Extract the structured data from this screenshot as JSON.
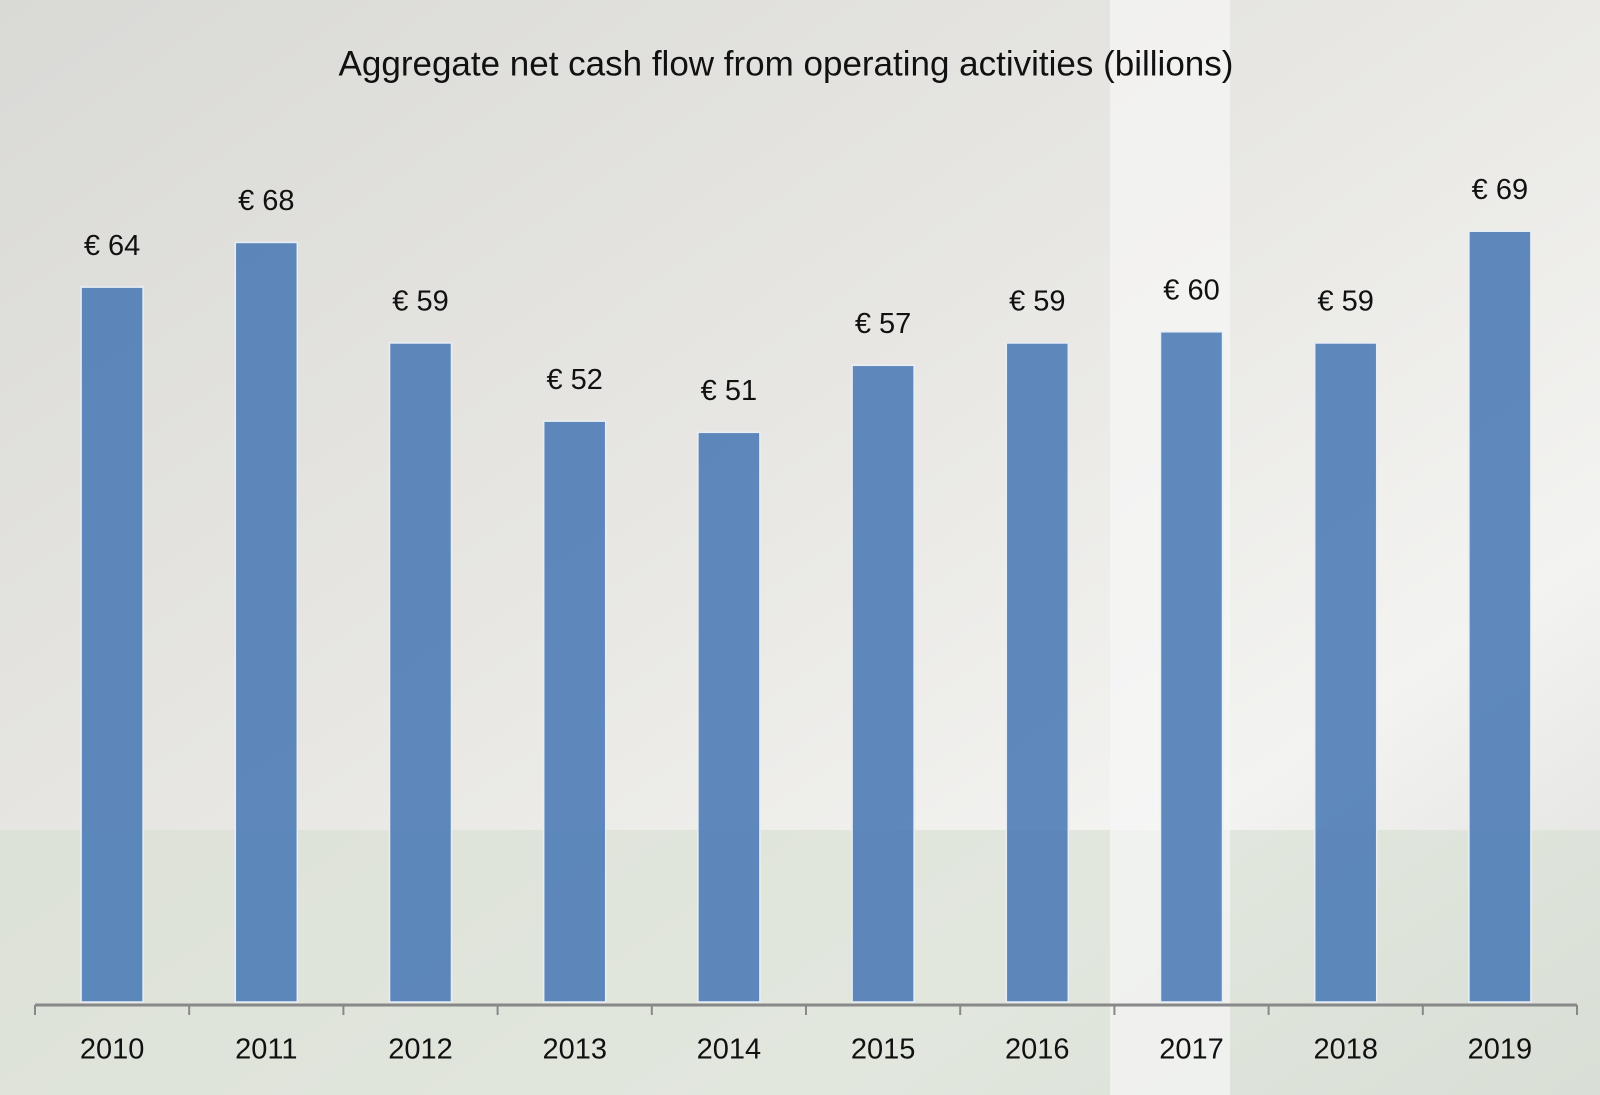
{
  "chart_data": {
    "type": "bar",
    "title": "Aggregate net cash flow from operating activities (billions)",
    "categories": [
      "2010",
      "2011",
      "2012",
      "2013",
      "2014",
      "2015",
      "2016",
      "2017",
      "2018",
      "2019"
    ],
    "values": [
      64,
      68,
      59,
      52,
      51,
      57,
      59,
      60,
      59,
      69
    ],
    "value_labels": [
      "€ 64",
      "€ 68",
      "€ 59",
      "€ 52",
      "€ 51",
      "€ 57",
      "€ 59",
      "€ 60",
      "€ 59",
      "€ 69"
    ],
    "color": "#4a7ab5"
  }
}
